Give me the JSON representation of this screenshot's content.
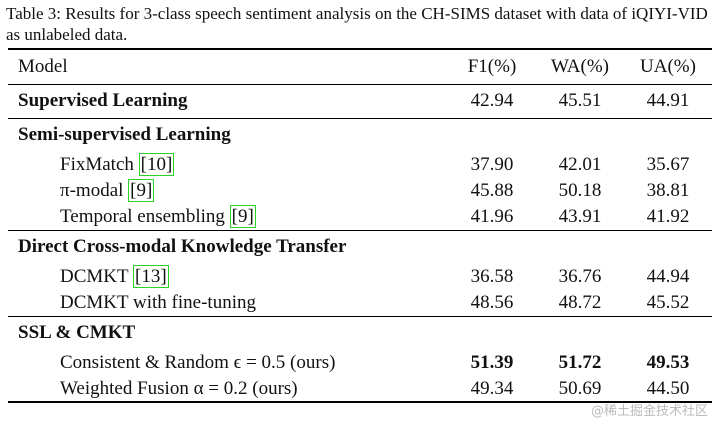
{
  "caption": "Table 3: Results for 3-class speech sentiment analysis on the CH-SIMS dataset with data of iQIYI-VID as unlabeled data.",
  "table": {
    "header": [
      "Model",
      "F1(%)",
      "WA(%)",
      "UA(%)"
    ],
    "sections": [
      {
        "title": "Supervised Learning",
        "values": [
          "42.94",
          "45.51",
          "44.91"
        ],
        "rows": []
      },
      {
        "title": "Semi-supervised Learning",
        "rows": [
          {
            "name": "FixMatch",
            "ref": "[10]",
            "values": [
              "37.90",
              "42.01",
              "35.67"
            ]
          },
          {
            "name": "π-modal",
            "ref": "[9]",
            "values": [
              "45.88",
              "50.18",
              "38.81"
            ]
          },
          {
            "name": "Temporal ensembling",
            "ref": "[9]",
            "values": [
              "41.96",
              "43.91",
              "41.92"
            ]
          }
        ]
      },
      {
        "title": "Direct Cross-modal Knowledge Transfer",
        "rows": [
          {
            "name": "DCMKT",
            "ref": "[13]",
            "values": [
              "36.58",
              "36.76",
              "44.94"
            ]
          },
          {
            "name": "DCMKT with fine-tuning",
            "values": [
              "48.56",
              "48.72",
              "45.52"
            ]
          }
        ]
      },
      {
        "title": "SSL & CMKT",
        "rows": [
          {
            "name": "Consistent & Random ϵ = 0.5 (ours)",
            "values": [
              "51.39",
              "51.72",
              "49.53"
            ],
            "bold": true
          },
          {
            "name": "Weighted Fusion α = 0.2 (ours)",
            "values": [
              "49.34",
              "50.69",
              "44.50"
            ]
          }
        ]
      }
    ]
  },
  "watermark": "@稀土掘金技术社区"
}
